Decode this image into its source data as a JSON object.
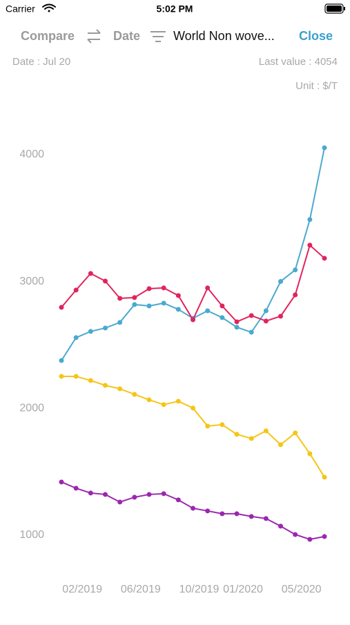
{
  "status_bar": {
    "carrier": "Carrier",
    "time": "5:02 PM"
  },
  "toolbar": {
    "compare": "Compare",
    "date": "Date",
    "title": "World Non wove...",
    "close": "Close"
  },
  "info": {
    "date": "Date : Jul 20",
    "last_value": "Last value : 4054",
    "unit": "Unit : $/T"
  },
  "chart_data": {
    "type": "line",
    "categories": [
      null,
      "02/2019",
      null,
      null,
      null,
      "06/2019",
      null,
      null,
      null,
      "10/2019",
      null,
      null,
      "01/2020",
      null,
      null,
      null,
      "05/2020",
      null,
      null
    ],
    "series": [
      {
        "color": "#4aa9cf",
        "values": [
          2377,
          2557,
          2606,
          2633,
          2677,
          2818,
          2807,
          2829,
          2780,
          2709,
          2769,
          2715,
          2639,
          2600,
          2769,
          3000,
          3091,
          3488,
          4054
        ]
      },
      {
        "color": "#e0245e",
        "values": [
          2796,
          2932,
          3063,
          3003,
          2867,
          2873,
          2943,
          2949,
          2889,
          2698,
          2949,
          2807,
          2682,
          2731,
          2688,
          2726,
          2894,
          3286,
          3183
        ]
      },
      {
        "color": "#f5c518",
        "values": [
          2252,
          2252,
          2219,
          2181,
          2154,
          2110,
          2067,
          2029,
          2056,
          2002,
          1860,
          1871,
          1795,
          1762,
          1822,
          1713,
          1806,
          1642,
          1457
        ]
      },
      {
        "color": "#9b27af",
        "values": [
          1419,
          1370,
          1332,
          1321,
          1261,
          1299,
          1321,
          1327,
          1278,
          1212,
          1191,
          1169,
          1169,
          1147,
          1131,
          1071,
          1005,
          967,
          989
        ]
      }
    ],
    "ylim": [
      700,
      4130
    ],
    "yticks": [
      1000,
      2000,
      3000,
      4000
    ],
    "grid": false
  }
}
